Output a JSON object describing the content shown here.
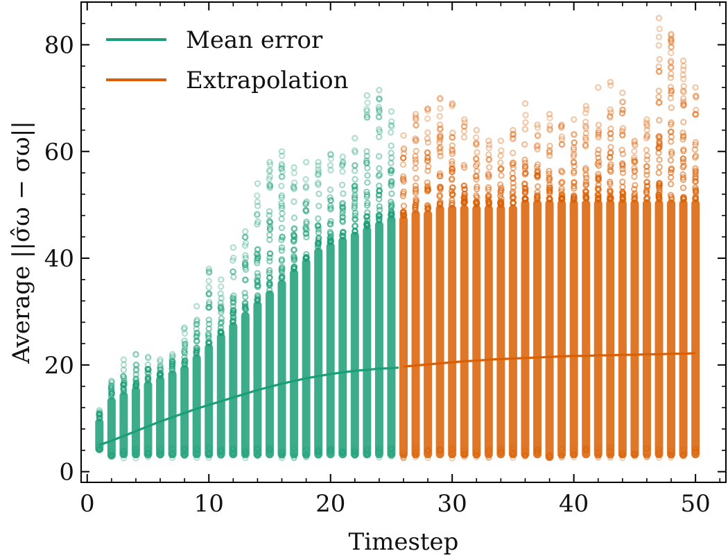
{
  "chart_data": {
    "type": "scatter",
    "title": "",
    "xlabel": "Timestep",
    "ylabel": "Average ||σ̂ω − σω||",
    "xlim": [
      -0.5,
      52.5
    ],
    "ylim": [
      -2,
      88
    ],
    "xticks": [
      0,
      10,
      20,
      30,
      40,
      50
    ],
    "yticks": [
      0,
      20,
      40,
      60,
      80
    ],
    "legend_position": "top-left",
    "grid": false,
    "series": [
      {
        "name": "Mean error",
        "kind": "line+scatter",
        "color": "#1b9e77",
        "x": [
          1,
          2,
          3,
          4,
          5,
          6,
          7,
          8,
          9,
          10,
          11,
          12,
          13,
          14,
          15,
          16,
          17,
          18,
          19,
          20,
          21,
          22,
          23,
          24,
          25,
          25.6
        ],
        "mean": [
          5.0,
          5.8,
          6.7,
          7.6,
          8.5,
          9.4,
          10.2,
          11.0,
          11.8,
          12.5,
          13.2,
          13.9,
          14.6,
          15.3,
          15.9,
          16.5,
          17.0,
          17.5,
          17.9,
          18.3,
          18.6,
          18.9,
          19.1,
          19.3,
          19.4,
          19.5
        ],
        "spread_min": [
          3.5,
          2.3,
          2.5,
          2.5,
          2.5,
          2.5,
          2.5,
          2.5,
          2.5,
          2.5,
          2.5,
          2.5,
          2.5,
          2.5,
          2.5,
          2.5,
          2.5,
          2.5,
          2.5,
          2.5,
          2.5,
          2.5,
          2.5,
          2.5,
          2.5,
          2.5
        ],
        "spread_dense_max": [
          10,
          14,
          15,
          16,
          17,
          18,
          19,
          20,
          22,
          24,
          26,
          28,
          30,
          32,
          34,
          36,
          38,
          40,
          42,
          43,
          44,
          45,
          46,
          47,
          48,
          48
        ],
        "spread_max": [
          11.5,
          17,
          21,
          22,
          21.5,
          21,
          22,
          27,
          31,
          38,
          36,
          42,
          45,
          54,
          58,
          60,
          57,
          58,
          58,
          59.5,
          59,
          62.5,
          70.5,
          71.5,
          67.5,
          56
        ]
      },
      {
        "name": "Extrapolation",
        "kind": "line+scatter",
        "color": "#d95f02",
        "x": [
          26,
          27,
          28,
          29,
          30,
          31,
          32,
          33,
          34,
          35,
          36,
          37,
          38,
          39,
          40,
          41,
          42,
          43,
          44,
          45,
          46,
          47,
          48,
          49,
          50
        ],
        "mean": [
          19.7,
          19.9,
          20.1,
          20.3,
          20.5,
          20.7,
          20.8,
          21.0,
          21.1,
          21.2,
          21.3,
          21.4,
          21.5,
          21.6,
          21.7,
          21.7,
          21.8,
          21.8,
          21.9,
          21.9,
          22.0,
          22.0,
          22.1,
          22.1,
          22.2
        ],
        "spread_min": [
          2.5,
          2.5,
          2.5,
          2.5,
          2.5,
          2.5,
          2.5,
          2.5,
          2.5,
          2.5,
          2.5,
          2.5,
          2.0,
          2.5,
          2.5,
          2.5,
          2.5,
          2.5,
          2.5,
          2.5,
          2.5,
          2.5,
          2.5,
          2.5,
          2.5
        ],
        "spread_dense_max": [
          48,
          49,
          49,
          50,
          50,
          50,
          50,
          50,
          50,
          50,
          51,
          51,
          51,
          51,
          51,
          51,
          51,
          51,
          51,
          51,
          51,
          51,
          51,
          51,
          51
        ],
        "spread_max": [
          63,
          67,
          68,
          70,
          69,
          66,
          64,
          62,
          62,
          64,
          69,
          65,
          67,
          65,
          66,
          68.5,
          72,
          73,
          71,
          62,
          66,
          85,
          82,
          77,
          72
        ]
      }
    ]
  }
}
